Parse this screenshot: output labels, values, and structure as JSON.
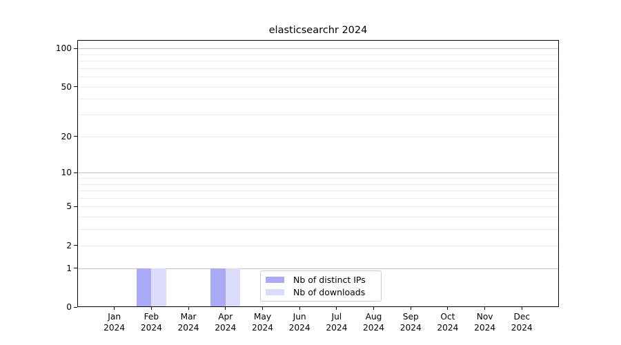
{
  "chart_data": {
    "type": "bar",
    "title": "elasticsearchr 2024",
    "categories": [
      "Jan 2024",
      "Feb 2024",
      "Mar 2024",
      "Apr 2024",
      "May 2024",
      "Jun 2024",
      "Jul 2024",
      "Aug 2024",
      "Sep 2024",
      "Oct 2024",
      "Nov 2024",
      "Dec 2024"
    ],
    "x_ticks": [
      {
        "label": "Jan",
        "sublabel": "2024"
      },
      {
        "label": "Feb",
        "sublabel": "2024"
      },
      {
        "label": "Mar",
        "sublabel": "2024"
      },
      {
        "label": "Apr",
        "sublabel": "2024"
      },
      {
        "label": "May",
        "sublabel": "2024"
      },
      {
        "label": "Jun",
        "sublabel": "2024"
      },
      {
        "label": "Jul",
        "sublabel": "2024"
      },
      {
        "label": "Aug",
        "sublabel": "2024"
      },
      {
        "label": "Sep",
        "sublabel": "2024"
      },
      {
        "label": "Oct",
        "sublabel": "2024"
      },
      {
        "label": "Nov",
        "sublabel": "2024"
      },
      {
        "label": "Dec",
        "sublabel": "2024"
      }
    ],
    "series": [
      {
        "name": "Nb of distinct IPs",
        "color": "#aaaaf6",
        "values": [
          0,
          1,
          0,
          1,
          0,
          0,
          0,
          0,
          0,
          0,
          0,
          0
        ]
      },
      {
        "name": "Nb of downloads",
        "color": "#dcdcfa",
        "values": [
          0,
          1,
          0,
          1,
          0,
          0,
          0,
          0,
          0,
          0,
          0,
          0
        ]
      }
    ],
    "y_axis": {
      "scale": "log10(value+1)",
      "ticks": [
        0,
        1,
        2,
        5,
        10,
        20,
        50,
        100
      ],
      "major_gridlines": [
        1,
        10,
        100
      ],
      "minor_gridlines": [
        2,
        3,
        4,
        5,
        6,
        7,
        8,
        9,
        20,
        30,
        40,
        50,
        60,
        70,
        80,
        90
      ],
      "ylim": [
        0,
        115
      ]
    },
    "legend": {
      "position": "bottom-center"
    }
  },
  "colors": {
    "background": "#ffffff",
    "axis": "#000000",
    "grid_minor": "#ededed",
    "grid_major": "#c3c3c3",
    "legend_border": "#cccccc",
    "text": "#000000"
  }
}
